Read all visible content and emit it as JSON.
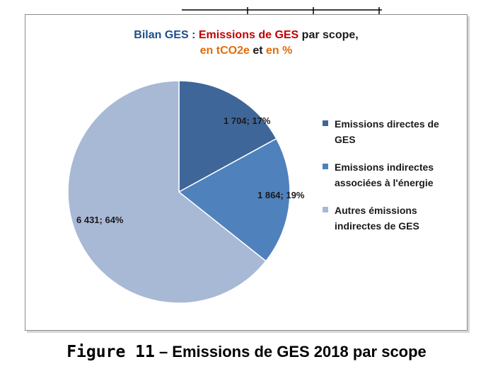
{
  "title": {
    "part1": "Bilan GES : ",
    "part2": "Emissions de GES",
    "part3": " par scope,",
    "part4": "en tCO2e",
    "part5": " et ",
    "part6": "en %"
  },
  "caption": {
    "label": "Figure 11",
    "text": " – Emissions de GES 2018 par scope"
  },
  "colors": {
    "title_blue": "#1f4e8c",
    "title_red": "#c00000",
    "title_orange": "#e36c0a"
  },
  "chart_data": {
    "type": "pie",
    "title": "Bilan GES : Emissions de GES par scope, en tCO2e et en %",
    "categories": [
      "Emissions directes de GES",
      "Emissions indirectes associées à l'énergie",
      "Autres émissions indirectes de GES"
    ],
    "values": [
      1704,
      1864,
      6431
    ],
    "percentages": [
      17,
      19,
      64
    ],
    "data_labels": [
      "1 704; 17%",
      "1 864; 19%",
      "6 431; 64%"
    ],
    "colors": [
      "#3f6699",
      "#4f81bd",
      "#a8b9d6"
    ],
    "legend_placement": "right",
    "legend": [
      [
        "Emissions directes de",
        "GES"
      ],
      [
        "Emissions indirectes",
        "associées à l'énergie"
      ],
      [
        "Autres émissions",
        "indirectes de GES"
      ]
    ]
  }
}
